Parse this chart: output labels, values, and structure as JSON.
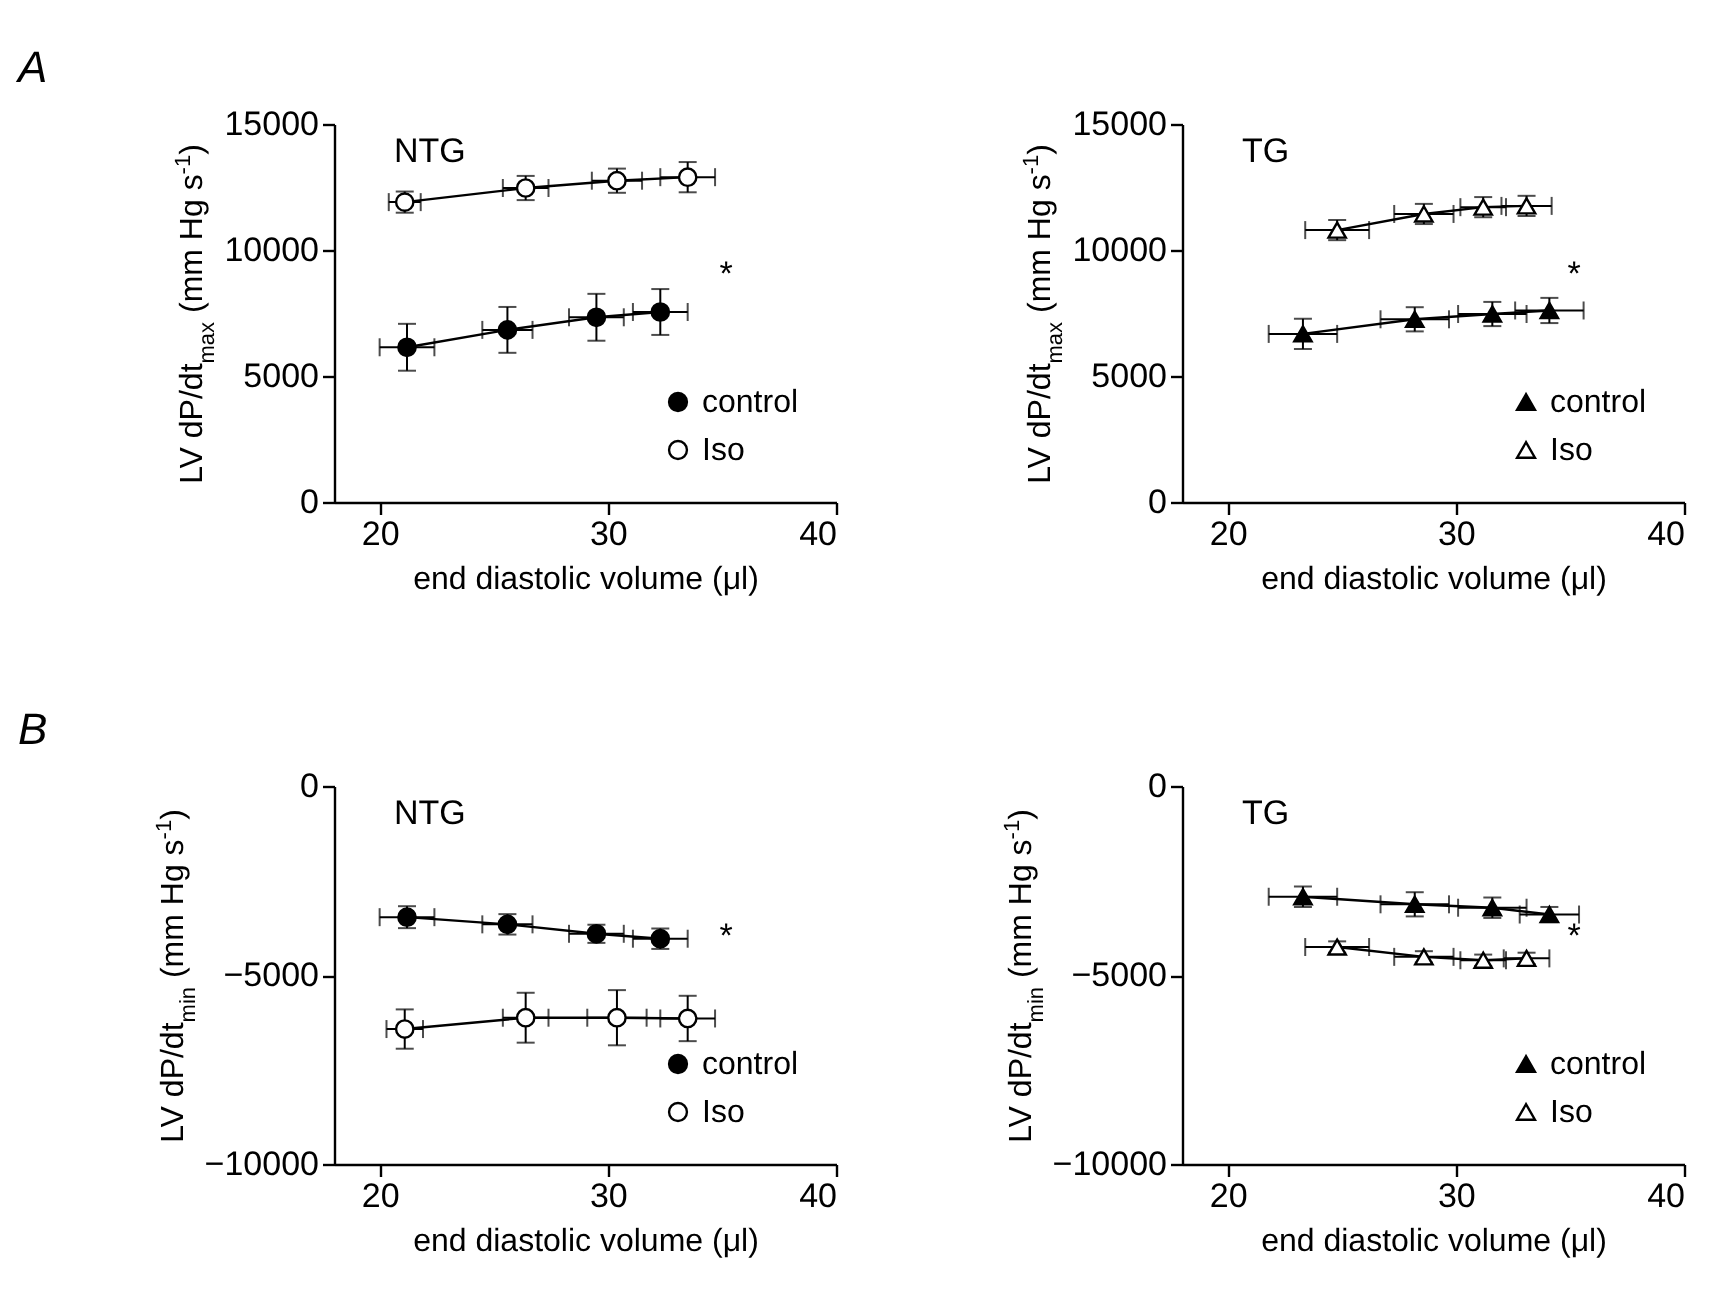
{
  "chart_data": [
    {
      "type": "line",
      "title": "NTG",
      "xlabel": "end diastolic volume (μl)",
      "ylabel": "LV dP/dt$_{max}$ (mm Hg s$^{-1}$)",
      "xlim": [
        18,
        40
      ],
      "xticks": [
        20,
        30,
        40
      ],
      "ylim": [
        0,
        15000
      ],
      "yticks": [
        0,
        5000,
        10000,
        15000
      ],
      "grid": false,
      "legend": "bottom right",
      "marker": "circle",
      "annotations": [
        "A",
        "*"
      ],
      "series": [
        {
          "name": "control",
          "color": "#000000",
          "x": [
            21.2,
            25.6,
            29.5,
            32.3
          ],
          "values": [
            6140,
            6830,
            7330,
            7540
          ],
          "errors": [
            930,
            910,
            930,
            910
          ],
          "xerrors": [
            1.2,
            1.1,
            1.2,
            1.2
          ]
        },
        {
          "name": "Iso",
          "color": "#000000",
          "x": [
            21.1,
            26.4,
            30.4,
            33.5
          ],
          "values": [
            11900,
            12460,
            12750,
            12890
          ],
          "errors": [
            420,
            480,
            480,
            600
          ],
          "xerrors": [
            0.7,
            1.0,
            1.1,
            1.2
          ]
        }
      ]
    },
    {
      "type": "line",
      "title": "TG",
      "xlabel": "end diastolic volume (μl)",
      "ylabel": "LV dP/dt$_{max}$ (mm Hg s$^{-1}$)",
      "xlim": [
        18,
        40
      ],
      "xticks": [
        20,
        30,
        40
      ],
      "ylim": [
        0,
        15000
      ],
      "yticks": [
        0,
        5000,
        10000,
        15000
      ],
      "grid": false,
      "legend": "bottom right",
      "marker": "triangle",
      "annotations": [
        "*"
      ],
      "series": [
        {
          "name": "control",
          "color": "#000000",
          "x": [
            23.3,
            28.2,
            31.6,
            34.1
          ],
          "values": [
            6670,
            7250,
            7460,
            7600
          ],
          "errors": [
            600,
            480,
            480,
            500
          ],
          "xerrors": [
            1.5,
            1.5,
            1.5,
            1.5
          ]
        },
        {
          "name": "Iso",
          "color": "#000000",
          "x": [
            24.8,
            28.6,
            31.2,
            33.1
          ],
          "values": [
            10790,
            11430,
            11700,
            11750
          ],
          "errors": [
            400,
            400,
            400,
            400
          ],
          "xerrors": [
            1.4,
            1.3,
            1.0,
            1.1
          ]
        }
      ]
    },
    {
      "type": "line",
      "title": "NTG",
      "xlabel": "end diastolic volume (μl)",
      "ylabel": "LV dP/dt$_{min}$ (mm Hg s$^{-1}$)",
      "xlim": [
        18,
        40
      ],
      "xticks": [
        20,
        30,
        40
      ],
      "ylim": [
        -10000,
        0
      ],
      "yticks": [
        -10000,
        -5000,
        0
      ],
      "grid": false,
      "legend": "bottom right",
      "marker": "circle",
      "annotations": [
        "B",
        "*"
      ],
      "series": [
        {
          "name": "control",
          "color": "#000000",
          "x": [
            21.2,
            25.6,
            29.5,
            32.3
          ],
          "values": [
            -3470,
            -3660,
            -3910,
            -4040
          ],
          "errors": [
            290,
            270,
            240,
            270
          ],
          "xerrors": [
            1.2,
            1.1,
            1.2,
            1.2
          ]
        },
        {
          "name": "Iso",
          "color": "#000000",
          "x": [
            21.1,
            26.4,
            30.4,
            33.5
          ],
          "values": [
            -6430,
            -6130,
            -6130,
            -6150
          ],
          "errors": [
            520,
            660,
            730,
            600
          ],
          "xerrors": [
            0.8,
            1.0,
            1.3,
            1.2
          ]
        }
      ]
    },
    {
      "type": "line",
      "title": "TG",
      "xlabel": "end diastolic volume (μl)",
      "ylabel": "LV dP/dt$_{min}$ (mm Hg s$^{-1}$)",
      "xlim": [
        18,
        40
      ],
      "xticks": [
        20,
        30,
        40
      ],
      "ylim": [
        -10000,
        0
      ],
      "yticks": [
        -10000,
        -5000,
        0
      ],
      "grid": false,
      "legend": "bottom right",
      "marker": "triangle",
      "annotations": [
        "*"
      ],
      "series": [
        {
          "name": "control",
          "color": "#000000",
          "x": [
            23.3,
            28.2,
            31.6,
            34.1
          ],
          "values": [
            -2930,
            -3130,
            -3220,
            -3400
          ],
          "errors": [
            270,
            320,
            270,
            200
          ],
          "xerrors": [
            1.5,
            1.5,
            1.5,
            1.3
          ]
        },
        {
          "name": "Iso",
          "color": "#000000",
          "x": [
            24.8,
            28.6,
            31.2,
            33.1
          ],
          "values": [
            -4260,
            -4520,
            -4610,
            -4560
          ],
          "errors": [
            150,
            150,
            150,
            150
          ],
          "xerrors": [
            1.4,
            1.3,
            1.0,
            1.0
          ]
        }
      ]
    }
  ]
}
